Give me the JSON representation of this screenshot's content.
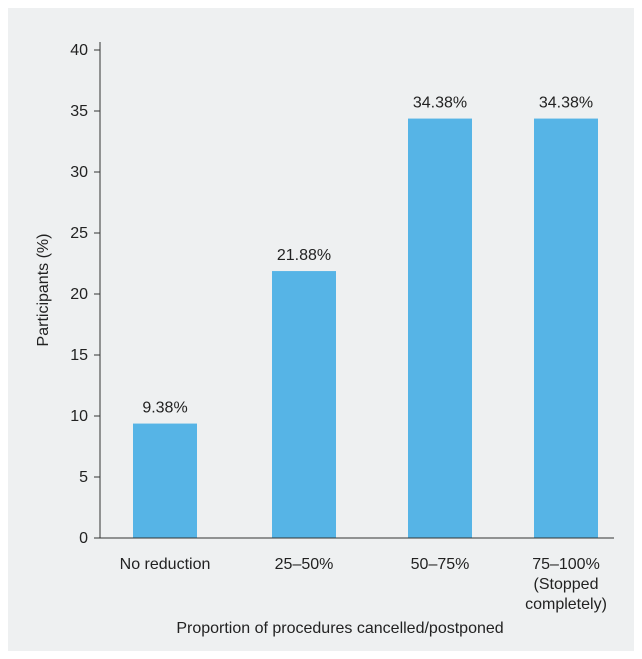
{
  "colors": {
    "bar": "#56b4e6",
    "panel": "#eef0f1",
    "axis": "#333333"
  },
  "chart_data": {
    "type": "bar",
    "title": "",
    "xlabel": "Proportion of procedures cancelled/postponed",
    "ylabel": "Participants (%)",
    "ylim": [
      0,
      40
    ],
    "yticks": [
      "0",
      "5",
      "10",
      "15",
      "20",
      "25",
      "30",
      "35",
      "40"
    ],
    "grid": false,
    "categories": [
      [
        "No reduction"
      ],
      [
        "25–50%"
      ],
      [
        "50–75%"
      ],
      [
        "75–100%",
        "(Stopped",
        "completely)"
      ]
    ],
    "values": [
      9.38,
      21.88,
      34.38,
      34.38
    ],
    "data_labels": [
      "9.38%",
      "21.88%",
      "34.38%",
      "34.38%"
    ]
  }
}
